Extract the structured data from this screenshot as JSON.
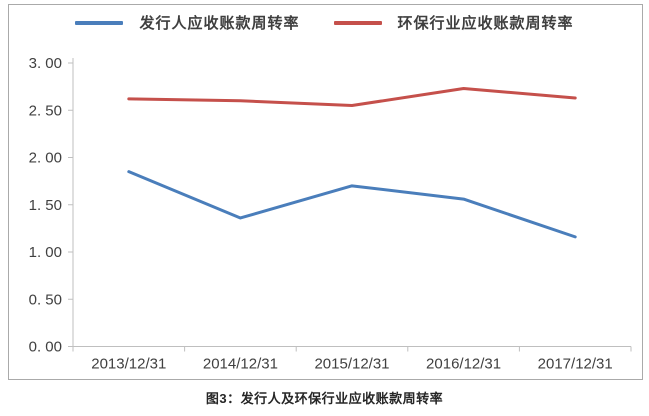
{
  "figure": {
    "caption": "图3：发行人及环保行业应收账款周转率"
  },
  "chart_data": {
    "type": "line",
    "categories": [
      "2013/12/31",
      "2014/12/31",
      "2015/12/31",
      "2016/12/31",
      "2017/12/31"
    ],
    "series": [
      {
        "name": "发行人应收账款周转率",
        "color": "#4a7ebb",
        "values": [
          1.85,
          1.36,
          1.7,
          1.56,
          1.16
        ]
      },
      {
        "name": "环保行业应收账款周转率",
        "color": "#c5504b",
        "values": [
          2.62,
          2.6,
          2.55,
          2.73,
          2.63
        ]
      }
    ],
    "ylim": [
      0,
      3
    ],
    "ytick_step": 0.5,
    "ytick_labels": [
      "0. 00",
      "0. 50",
      "1. 00",
      "1. 50",
      "2. 00",
      "2. 50",
      "3. 00"
    ],
    "grid": false,
    "legend_position": "top",
    "title": "",
    "xlabel": "",
    "ylabel": ""
  },
  "colors": {
    "background": "#ffffff",
    "frame_border": "#aaaaaa",
    "axis": "#bfbfbf",
    "tick_text": "#404040",
    "legend_text": "#3f3f3f",
    "caption_text": "#262626"
  }
}
